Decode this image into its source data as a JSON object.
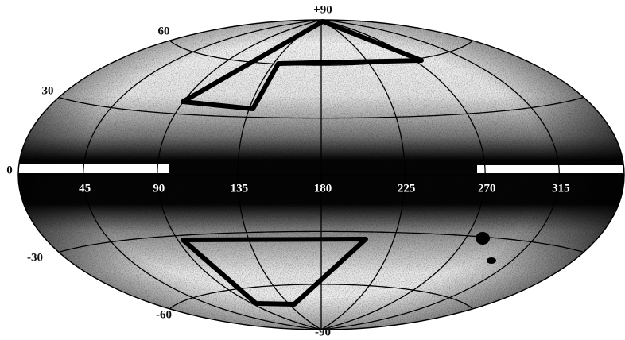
{
  "latitude_labels": [
    "+90",
    "60",
    "30",
    "0",
    "-30",
    "-60",
    "-90"
  ],
  "longitude_labels": [
    "45",
    "90",
    "135",
    "180",
    "225",
    "270",
    "315"
  ]
}
